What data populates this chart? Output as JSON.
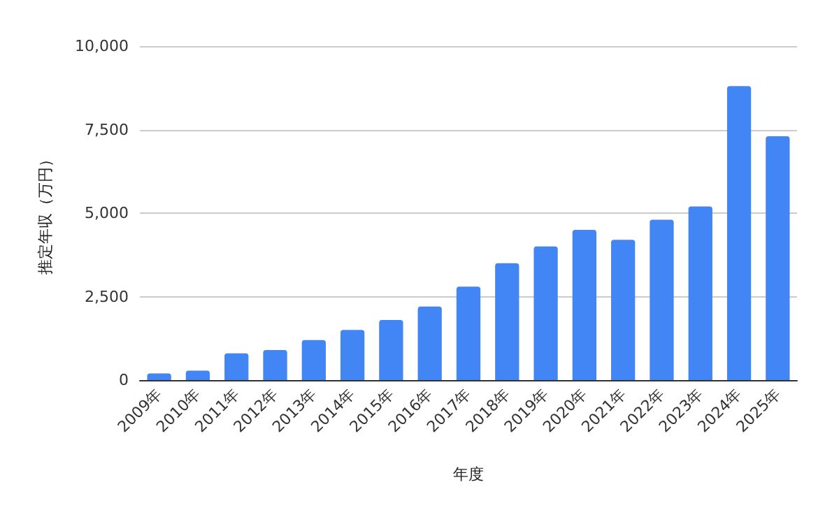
{
  "chart_data": {
    "type": "bar",
    "xlabel": "年度",
    "ylabel": "推定年収（万円）",
    "categories": [
      "2009年",
      "2010年",
      "2011年",
      "2012年",
      "2013年",
      "2014年",
      "2015年",
      "2016年",
      "2017年",
      "2018年",
      "2019年",
      "2020年",
      "2021年",
      "2022年",
      "2023年",
      "2024年",
      "2025年"
    ],
    "values": [
      200,
      280,
      800,
      900,
      1200,
      1500,
      1800,
      2200,
      2800,
      3500,
      4000,
      4500,
      4200,
      4800,
      5200,
      8800,
      7300
    ],
    "color": "#4285f4",
    "ylim": [
      0,
      10000
    ],
    "yticks": [
      {
        "value": 0,
        "label": "0"
      },
      {
        "value": 2500,
        "label": "2,500"
      },
      {
        "value": 5000,
        "label": "5,000"
      },
      {
        "value": 7500,
        "label": "7,500"
      },
      {
        "value": 10000,
        "label": "10,000"
      }
    ],
    "grid": "y"
  }
}
